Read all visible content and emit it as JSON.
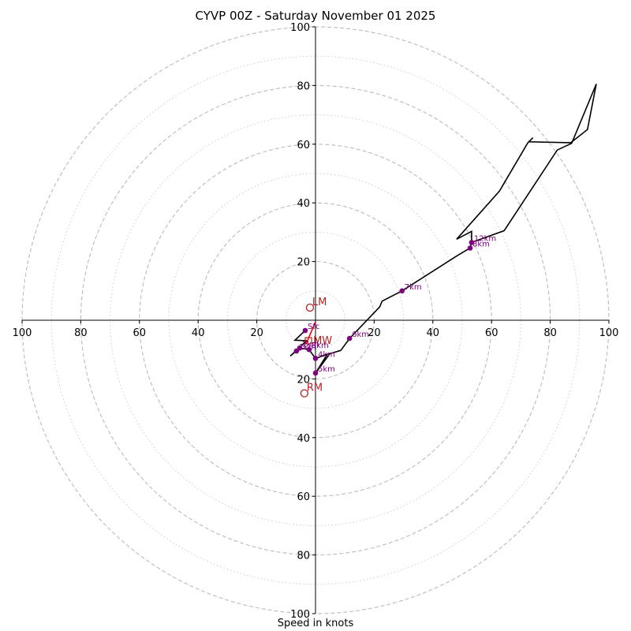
{
  "chart_data": {
    "type": "line",
    "title": "CYVP 00Z - Saturday November 01 2025",
    "xlabel": "Speed in knots",
    "ylabel": "",
    "rlim": [
      0,
      100
    ],
    "ring_major": [
      20,
      40,
      60,
      80,
      100
    ],
    "ring_minor": [
      10,
      30,
      50,
      70,
      90
    ],
    "tick_labels_x": [
      "100",
      "80",
      "60",
      "40",
      "20",
      "20",
      "40",
      "60",
      "80",
      "100"
    ],
    "tick_values_x": [
      -100,
      -80,
      -60,
      -40,
      -20,
      20,
      40,
      60,
      80,
      100
    ],
    "tick_labels_y": [
      "100",
      "80",
      "60",
      "40",
      "20",
      "20",
      "40",
      "60",
      "80",
      "100"
    ],
    "tick_values_y": [
      100,
      80,
      60,
      40,
      20,
      -20,
      -40,
      -60,
      -80,
      -100
    ],
    "hodograph": {
      "color": "#000000",
      "points": [
        [
          -3.5,
          -3.5
        ],
        [
          -7,
          -6.8
        ],
        [
          -3,
          -7
        ],
        [
          -8.6,
          -12.2
        ],
        [
          -5.4,
          -9.5
        ],
        [
          -2.2,
          -10
        ],
        [
          0,
          -13
        ],
        [
          4,
          -11.6
        ],
        [
          0,
          -18
        ],
        [
          4.9,
          -11.4
        ],
        [
          8.6,
          -10.3
        ],
        [
          11.6,
          -6.2
        ],
        [
          21.9,
          4.6
        ],
        [
          22.7,
          6.5
        ],
        [
          29.5,
          10
        ],
        [
          48.6,
          22.2
        ],
        [
          52.7,
          24.6
        ],
        [
          53.2,
          26.5
        ],
        [
          53.2,
          30.3
        ],
        [
          48.1,
          27.6
        ],
        [
          62.7,
          44
        ],
        [
          72.4,
          60.5
        ],
        [
          74.1,
          62.2
        ],
        [
          72.7,
          60.8
        ],
        [
          87,
          60.5
        ],
        [
          92.7,
          65
        ],
        [
          95.7,
          80.5
        ],
        [
          87.3,
          60.3
        ],
        [
          82.4,
          58
        ],
        [
          64.3,
          30.5
        ],
        [
          53.2,
          26.5
        ]
      ]
    },
    "markers": {
      "color": "#800080",
      "items": [
        {
          "label": "Sfc",
          "u": -3.5,
          "v": -3.5
        },
        {
          "label": "1km",
          "u": -6.5,
          "v": -10.5
        },
        {
          "label": "2km",
          "u": -5.4,
          "v": -9.5
        },
        {
          "label": "3km",
          "u": -2.2,
          "v": -10
        },
        {
          "label": "4km",
          "u": 0,
          "v": -13
        },
        {
          "label": "5km",
          "u": 0,
          "v": -18
        },
        {
          "label": "6km",
          "u": 11.6,
          "v": -6.2
        },
        {
          "label": "7km",
          "u": 29.5,
          "v": 10
        },
        {
          "label": "8km",
          "u": 52.7,
          "v": 24.6
        },
        {
          "label": "12km",
          "u": 53.2,
          "v": 26.5
        }
      ]
    },
    "storm_motion": {
      "color": "#b22222",
      "line_color": "#ff0000",
      "LM": {
        "label": "LM",
        "u": -1.9,
        "v": 4.3
      },
      "RM": {
        "label": "RM",
        "u": -3.8,
        "v": -24.9
      },
      "MW": {
        "label": "MW",
        "u": -2.4,
        "v": -7
      }
    },
    "grid_color": "#bbbbbb"
  }
}
